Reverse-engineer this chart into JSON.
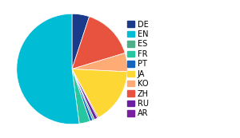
{
  "labels": [
    "DE",
    "ZH",
    "KO",
    "JA",
    "AR",
    "RU",
    "ES",
    "PT",
    "FR",
    "EN"
  ],
  "values": [
    4.8,
    14.5,
    5.2,
    15.5,
    0.3,
    0.9,
    0.5,
    0.8,
    3.0,
    49.5
  ],
  "colors": [
    "#1a3a8a",
    "#e8533f",
    "#ffab76",
    "#fdd835",
    "#7b1fa2",
    "#6a1fa0",
    "#4caf8a",
    "#1565c0",
    "#26c6a0",
    "#00bcd4"
  ],
  "legend_order": [
    "DE",
    "EN",
    "ES",
    "FR",
    "PT",
    "JA",
    "KO",
    "ZH",
    "RU",
    "AR"
  ],
  "legend_colors": [
    "#1a3a8a",
    "#00bcd4",
    "#4caf8a",
    "#26c6a0",
    "#1565c0",
    "#fdd835",
    "#ffab76",
    "#e8533f",
    "#6a1fa0",
    "#7b1fa2"
  ],
  "startangle": 90,
  "legend_fontsize": 7
}
